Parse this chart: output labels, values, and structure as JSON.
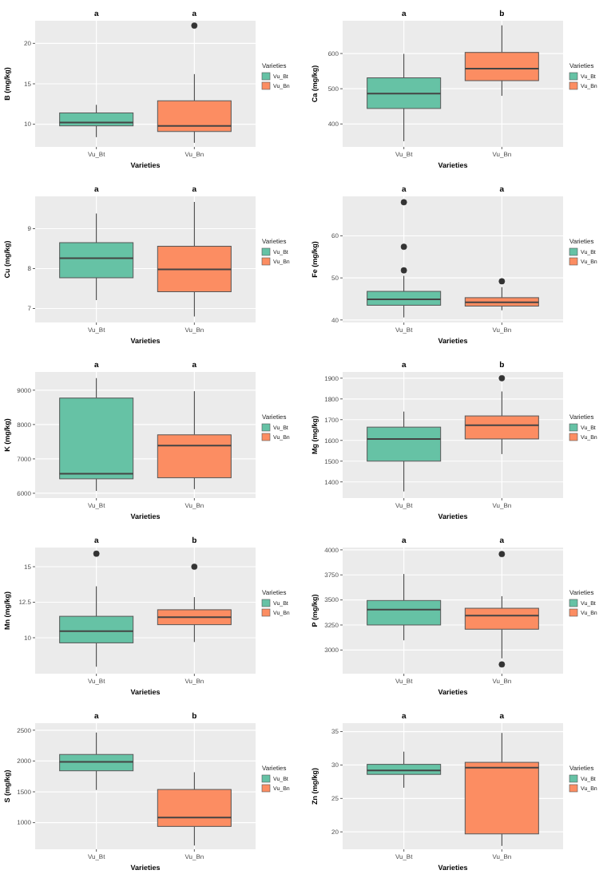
{
  "chart_data": [
    {
      "type": "box",
      "xlabel": "Varieties",
      "ylabel": "B (mg/kg)",
      "legend_title": "Varieties",
      "legend": "right",
      "grid": true,
      "categories": [
        "Vu_Bt",
        "Vu_Bn"
      ],
      "ylim": [
        7.2,
        22.8
      ],
      "yticks": [
        10,
        15,
        20
      ],
      "annotations": [
        "a",
        "a"
      ],
      "series": [
        {
          "name": "Vu_Bt",
          "color": "#66c2a5",
          "boxes": [
            {
              "low": 8.4,
              "q1": 9.8,
              "median": 10.2,
              "q3": 11.4,
              "high": 12.4
            },
            null
          ]
        },
        {
          "name": "Vu_Bn",
          "color": "#fc8d62",
          "boxes": [
            null,
            {
              "low": 7.7,
              "q1": 9.1,
              "median": 9.8,
              "q3": 12.9,
              "high": 16.2,
              "outliers": [
                22.2
              ]
            }
          ]
        }
      ]
    },
    {
      "type": "box",
      "xlabel": "Varieties",
      "ylabel": "Ca (mg/kg)",
      "legend_title": "Varieties",
      "legend": "right",
      "grid": true,
      "categories": [
        "Vu_Bt",
        "Vu_Bn"
      ],
      "ylim": [
        335,
        693
      ],
      "yticks": [
        400,
        500,
        600
      ],
      "annotations": [
        "a",
        "b"
      ],
      "series": [
        {
          "name": "Vu_Bt",
          "color": "#66c2a5",
          "boxes": [
            {
              "low": 351,
              "q1": 444,
              "median": 486,
              "q3": 531,
              "high": 599
            },
            null
          ]
        },
        {
          "name": "Vu_Bn",
          "color": "#fc8d62",
          "boxes": [
            null,
            {
              "low": 480,
              "q1": 523,
              "median": 557,
              "q3": 603,
              "high": 680
            }
          ]
        }
      ]
    },
    {
      "type": "box",
      "xlabel": "Varieties",
      "ylabel": "Cu (mg/kg)",
      "legend_title": "Varieties",
      "legend": "right",
      "grid": true,
      "categories": [
        "Vu_Bt",
        "Vu_Bn"
      ],
      "ylim": [
        6.65,
        9.81
      ],
      "yticks": [
        7,
        8,
        9
      ],
      "annotations": [
        "a",
        "a"
      ],
      "series": [
        {
          "name": "Vu_Bt",
          "color": "#66c2a5",
          "boxes": [
            {
              "low": 7.21,
              "q1": 7.77,
              "median": 8.26,
              "q3": 8.65,
              "high": 9.38
            },
            null
          ]
        },
        {
          "name": "Vu_Bn",
          "color": "#fc8d62",
          "boxes": [
            null,
            {
              "low": 6.8,
              "q1": 7.42,
              "median": 7.98,
              "q3": 8.56,
              "high": 9.67
            }
          ]
        }
      ]
    },
    {
      "type": "box",
      "xlabel": "Varieties",
      "ylabel": "Fe (mg/kg)",
      "legend_title": "Varieties",
      "legend": "right",
      "grid": true,
      "categories": [
        "Vu_Bt",
        "Vu_Bn"
      ],
      "ylim": [
        39.4,
        69.4
      ],
      "yticks": [
        40,
        50,
        60
      ],
      "annotations": [
        "a",
        "a"
      ],
      "series": [
        {
          "name": "Vu_Bt",
          "color": "#66c2a5",
          "boxes": [
            {
              "low": 40.6,
              "q1": 43.5,
              "median": 44.9,
              "q3": 46.8,
              "high": 50.5,
              "outliers": [
                51.8,
                57.4,
                68
              ]
            },
            null
          ]
        },
        {
          "name": "Vu_Bn",
          "color": "#fc8d62",
          "boxes": [
            null,
            {
              "low": 42.3,
              "q1": 43.3,
              "median": 44.2,
              "q3": 45.3,
              "high": 47.8,
              "outliers": [
                49.2
              ]
            }
          ]
        }
      ]
    },
    {
      "type": "box",
      "xlabel": "Varieties",
      "ylabel": "K (mg/kg)",
      "legend_title": "Varieties",
      "legend": "right",
      "grid": true,
      "categories": [
        "Vu_Bt",
        "Vu_Bn"
      ],
      "ylim": [
        5860,
        9530
      ],
      "yticks": [
        6000,
        7000,
        8000,
        9000
      ],
      "annotations": [
        "a",
        "a"
      ],
      "series": [
        {
          "name": "Vu_Bt",
          "color": "#66c2a5",
          "boxes": [
            {
              "low": 6068,
              "q1": 6420,
              "median": 6570,
              "q3": 8770,
              "high": 9350
            },
            null
          ]
        },
        {
          "name": "Vu_Bn",
          "color": "#fc8d62",
          "boxes": [
            null,
            {
              "low": 6120,
              "q1": 6450,
              "median": 7390,
              "q3": 7700,
              "high": 8970
            }
          ]
        }
      ]
    },
    {
      "type": "box",
      "xlabel": "Varieties",
      "ylabel": "Mg (mg/kg)",
      "legend_title": "Varieties",
      "legend": "right",
      "grid": true,
      "categories": [
        "Vu_Bt",
        "Vu_Bn"
      ],
      "ylim": [
        1322,
        1930
      ],
      "yticks": [
        1400,
        1500,
        1600,
        1700,
        1800,
        1900
      ],
      "annotations": [
        "a",
        "b"
      ],
      "series": [
        {
          "name": "Vu_Bt",
          "color": "#66c2a5",
          "boxes": [
            {
              "low": 1354,
              "q1": 1500,
              "median": 1607,
              "q3": 1664,
              "high": 1739
            },
            null
          ]
        },
        {
          "name": "Vu_Bn",
          "color": "#fc8d62",
          "boxes": [
            null,
            {
              "low": 1534,
              "q1": 1607,
              "median": 1673,
              "q3": 1718,
              "high": 1836,
              "outliers": [
                1900
              ]
            }
          ]
        }
      ]
    },
    {
      "type": "box",
      "xlabel": "Varieties",
      "ylabel": "Mn (mg/kg)",
      "legend_title": "Varieties",
      "legend": "right",
      "grid": true,
      "categories": [
        "Vu_Bt",
        "Vu_Bn"
      ],
      "ylim": [
        7.47,
        16.35
      ],
      "yticks": [
        10,
        12.5,
        15
      ],
      "annotations": [
        "a",
        "b"
      ],
      "series": [
        {
          "name": "Vu_Bt",
          "color": "#66c2a5",
          "boxes": [
            {
              "low": 7.96,
              "q1": 9.64,
              "median": 10.46,
              "q3": 11.51,
              "high": 13.62,
              "outliers": [
                15.92
              ]
            },
            null
          ]
        },
        {
          "name": "Vu_Bn",
          "color": "#fc8d62",
          "boxes": [
            null,
            {
              "low": 9.7,
              "q1": 10.92,
              "median": 11.45,
              "q3": 11.97,
              "high": 12.86,
              "outliers": [
                15
              ]
            }
          ]
        }
      ]
    },
    {
      "type": "box",
      "xlabel": "Varieties",
      "ylabel": "P (mg/kg)",
      "legend_title": "Varieties",
      "legend": "right",
      "grid": true,
      "categories": [
        "Vu_Bt",
        "Vu_Bn"
      ],
      "ylim": [
        2764,
        4023
      ],
      "yticks": [
        3000,
        3250,
        3500,
        3750,
        4000
      ],
      "annotations": [
        "a",
        "a"
      ],
      "series": [
        {
          "name": "Vu_Bt",
          "color": "#66c2a5",
          "boxes": [
            {
              "low": 3097,
              "q1": 3250,
              "median": 3403,
              "q3": 3495,
              "high": 3759
            },
            null
          ]
        },
        {
          "name": "Vu_Bn",
          "color": "#fc8d62",
          "boxes": [
            null,
            {
              "low": 2917,
              "q1": 3208,
              "median": 3343,
              "q3": 3417,
              "high": 3537,
              "outliers": [
                3958,
                2856
              ]
            }
          ]
        }
      ]
    },
    {
      "type": "box",
      "xlabel": "Varieties",
      "ylabel": "S (mg/kg)",
      "legend_title": "Varieties",
      "legend": "right",
      "grid": true,
      "categories": [
        "Vu_Bt",
        "Vu_Bn"
      ],
      "ylim": [
        568,
        2614
      ],
      "yticks": [
        1000,
        1500,
        2000,
        2500
      ],
      "annotations": [
        "a",
        "b"
      ],
      "series": [
        {
          "name": "Vu_Bt",
          "color": "#66c2a5",
          "boxes": [
            {
              "low": 1530,
              "q1": 1841,
              "median": 1985,
              "q3": 2106,
              "high": 2462
            },
            null
          ]
        },
        {
          "name": "Vu_Bn",
          "color": "#fc8d62",
          "boxes": [
            null,
            {
              "low": 629,
              "q1": 939,
              "median": 1083,
              "q3": 1538,
              "high": 1818
            }
          ]
        }
      ]
    },
    {
      "type": "box",
      "xlabel": "Varieties",
      "ylabel": "Zn (mg/kg)",
      "legend_title": "Varieties",
      "legend": "right",
      "grid": true,
      "categories": [
        "Vu_Bt",
        "Vu_Bn"
      ],
      "ylim": [
        17.4,
        36.26
      ],
      "yticks": [
        20,
        25,
        30,
        35
      ],
      "annotations": [
        "a",
        "a"
      ],
      "series": [
        {
          "name": "Vu_Bt",
          "color": "#66c2a5",
          "boxes": [
            {
              "low": 26.6,
              "q1": 28.6,
              "median": 29.2,
              "q3": 30.1,
              "high": 32.0
            },
            null
          ]
        },
        {
          "name": "Vu_Bn",
          "color": "#fc8d62",
          "boxes": [
            null,
            {
              "low": 17.9,
              "q1": 19.7,
              "median": 29.6,
              "q3": 30.4,
              "high": 34.8
            }
          ]
        }
      ]
    }
  ]
}
